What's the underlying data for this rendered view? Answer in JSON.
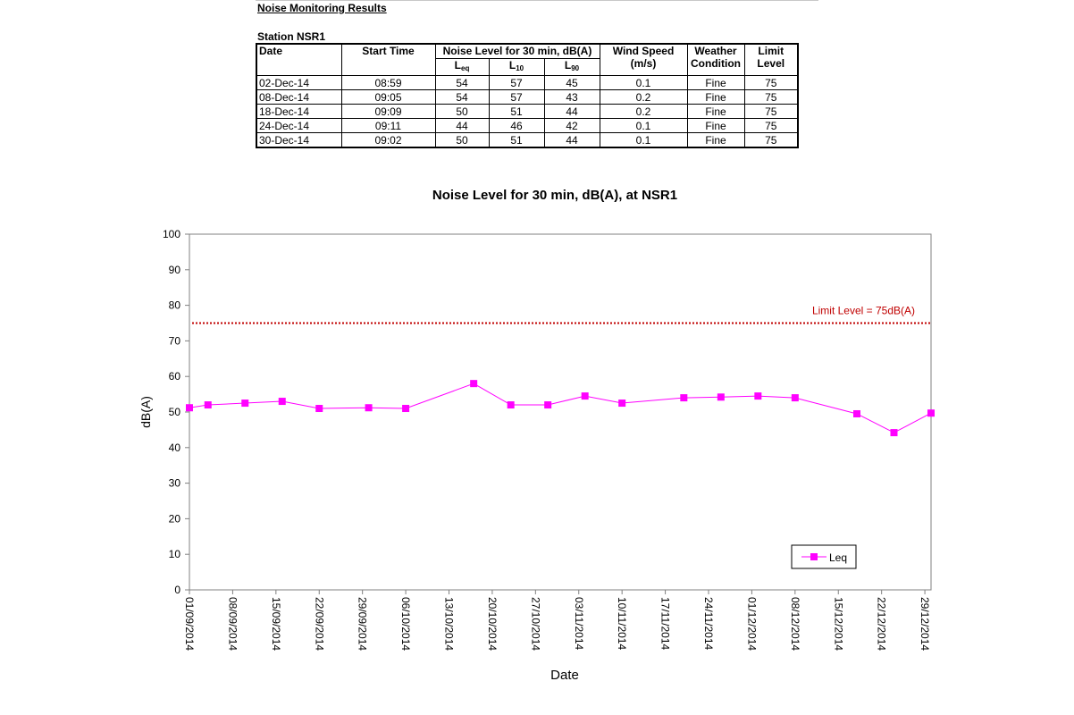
{
  "report": {
    "title": "Noise Monitoring Results",
    "station": "Station NSR1"
  },
  "table": {
    "headers": {
      "date": "Date",
      "start_time": "Start Time",
      "noise_level": "Noise Level for 30 min, dB(A)",
      "leq_main": "L",
      "leq_sub": "eq",
      "l10_main": "L",
      "l10_sub": "10",
      "l90_main": "L",
      "l90_sub": "90",
      "wind_speed_1": "Wind Speed",
      "wind_speed_2": "(m/s)",
      "weather_1": "Weather",
      "weather_2": "Condition",
      "limit_1": "Limit",
      "limit_2": "Level"
    },
    "rows": [
      {
        "date": "02-Dec-14",
        "time": "08:59",
        "leq": "54",
        "l10": "57",
        "l90": "45",
        "wind": "0.1",
        "weather": "Fine",
        "limit": "75"
      },
      {
        "date": "08-Dec-14",
        "time": "09:05",
        "leq": "54",
        "l10": "57",
        "l90": "43",
        "wind": "0.2",
        "weather": "Fine",
        "limit": "75"
      },
      {
        "date": "18-Dec-14",
        "time": "09:09",
        "leq": "50",
        "l10": "51",
        "l90": "44",
        "wind": "0.2",
        "weather": "Fine",
        "limit": "75"
      },
      {
        "date": "24-Dec-14",
        "time": "09:11",
        "leq": "44",
        "l10": "46",
        "l90": "42",
        "wind": "0.1",
        "weather": "Fine",
        "limit": "75"
      },
      {
        "date": "30-Dec-14",
        "time": "09:02",
        "leq": "50",
        "l10": "51",
        "l90": "44",
        "wind": "0.1",
        "weather": "Fine",
        "limit": "75"
      }
    ]
  },
  "chart_data": {
    "type": "line",
    "title": "Noise Level for 30 min, dB(A), at NSR1",
    "xlabel": "Date",
    "ylabel": "dB(A)",
    "ylim": [
      0,
      100
    ],
    "yticks": [
      0,
      10,
      20,
      30,
      40,
      50,
      60,
      70,
      80,
      90,
      100
    ],
    "xlim": [
      "2014-09-01",
      "2014-12-30"
    ],
    "xtick_labels": [
      "01/09/2014",
      "08/09/2014",
      "15/09/2014",
      "22/09/2014",
      "29/09/2014",
      "06/10/2014",
      "13/10/2014",
      "20/10/2014",
      "27/10/2014",
      "03/11/2014",
      "10/11/2014",
      "17/11/2014",
      "24/11/2014",
      "01/12/2014",
      "08/12/2014",
      "15/12/2014",
      "22/12/2014",
      "29/12/2014"
    ],
    "grid": false,
    "legend": "bottom-right",
    "series": [
      {
        "name": "Leq",
        "color": "#ff00ff",
        "marker": "square",
        "points": [
          {
            "x": "2014-09-01",
            "y": 51.2
          },
          {
            "x": "2014-09-04",
            "y": 52
          },
          {
            "x": "2014-09-10",
            "y": 52.5
          },
          {
            "x": "2014-09-16",
            "y": 53
          },
          {
            "x": "2014-09-22",
            "y": 51
          },
          {
            "x": "2014-09-30",
            "y": 51.2
          },
          {
            "x": "2014-10-06",
            "y": 51
          },
          {
            "x": "2014-10-17",
            "y": 58
          },
          {
            "x": "2014-10-23",
            "y": 52
          },
          {
            "x": "2014-10-29",
            "y": 52
          },
          {
            "x": "2014-11-04",
            "y": 54.5
          },
          {
            "x": "2014-11-10",
            "y": 52.5
          },
          {
            "x": "2014-11-20",
            "y": 54
          },
          {
            "x": "2014-11-26",
            "y": 54.2
          },
          {
            "x": "2014-12-02",
            "y": 54.5
          },
          {
            "x": "2014-12-08",
            "y": 54
          },
          {
            "x": "2014-12-18",
            "y": 49.5
          },
          {
            "x": "2014-12-24",
            "y": 44.2
          },
          {
            "x": "2014-12-30",
            "y": 49.7
          }
        ]
      }
    ],
    "limit_line": {
      "value": 75,
      "label": "Limit Level  = 75dB(A)",
      "color": "#c00000",
      "style": "dotted"
    }
  }
}
